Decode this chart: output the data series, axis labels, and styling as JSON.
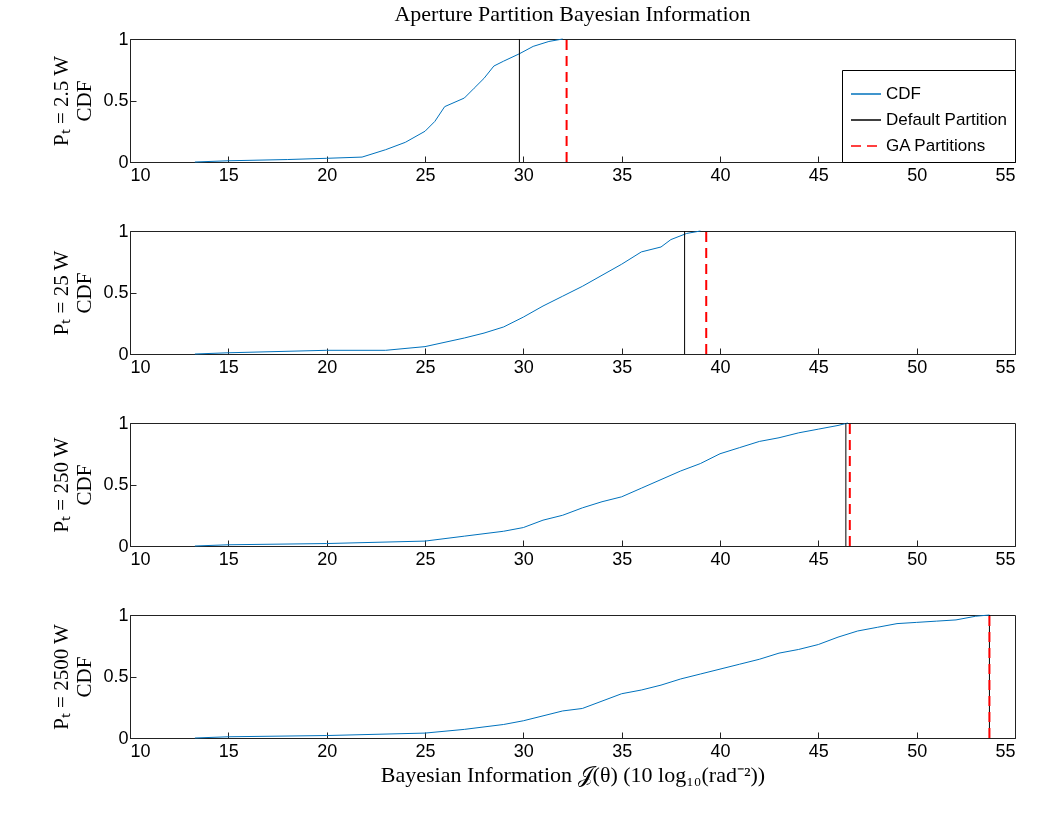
{
  "chart_data": [
    {
      "type": "line",
      "title": "Aperture Partition Bayesian Information",
      "ylabel": "Pₜ = 2.5 W\nCDF",
      "xlim": [
        10,
        55
      ],
      "xticks": [
        10,
        15,
        20,
        25,
        30,
        35,
        40,
        45,
        50,
        55
      ],
      "ylim": [
        0,
        1
      ],
      "yticks": [
        0,
        0.5,
        1
      ],
      "grid": false,
      "legend": "bottom right",
      "series": [
        {
          "name": "CDF",
          "color": "#0072bd",
          "x": [
            13.3,
            15,
            18,
            20,
            21.8,
            23,
            24,
            25,
            25.5,
            26,
            27,
            27.5,
            28,
            28.5,
            29,
            29.8,
            30.5,
            31.3,
            32
          ],
          "values": [
            0,
            0.01,
            0.02,
            0.03,
            0.04,
            0.1,
            0.16,
            0.25,
            0.33,
            0.45,
            0.52,
            0.6,
            0.68,
            0.78,
            0.82,
            0.88,
            0.94,
            0.98,
            1
          ]
        },
        {
          "name": "Default Partition",
          "color": "#000000",
          "x": [
            29.8,
            29.8
          ],
          "values": [
            0,
            1
          ]
        },
        {
          "name": "GA Partitions",
          "color": "#ff0000",
          "line_style": "dashed",
          "x": [
            32.2,
            32.2
          ],
          "values": [
            0,
            1
          ]
        }
      ]
    },
    {
      "type": "line",
      "ylabel": "Pₜ = 25 W\nCDF",
      "xlim": [
        10,
        55
      ],
      "xticks": [
        10,
        15,
        20,
        25,
        30,
        35,
        40,
        45,
        50,
        55
      ],
      "ylim": [
        0,
        1
      ],
      "yticks": [
        0,
        0.5,
        1
      ],
      "grid": false,
      "series": [
        {
          "color": "#0072bd",
          "x": [
            13.3,
            15,
            20,
            23,
            25,
            27,
            28,
            29,
            30,
            31,
            32,
            33,
            34,
            35,
            36,
            37,
            37.5,
            38.3,
            39
          ],
          "values": [
            0,
            0.01,
            0.03,
            0.03,
            0.06,
            0.13,
            0.17,
            0.22,
            0.3,
            0.39,
            0.47,
            0.55,
            0.64,
            0.73,
            0.83,
            0.87,
            0.93,
            0.98,
            1
          ]
        },
        {
          "color": "#000000",
          "x": [
            38.2,
            38.2
          ],
          "values": [
            0,
            1
          ]
        },
        {
          "color": "#ff0000",
          "line_style": "dashed",
          "x": [
            39.3,
            39.3
          ],
          "values": [
            0,
            1
          ]
        }
      ]
    },
    {
      "type": "line",
      "ylabel": "Pₜ = 250 W\nCDF",
      "xlim": [
        10,
        55
      ],
      "xticks": [
        10,
        15,
        20,
        25,
        30,
        35,
        40,
        45,
        50,
        55
      ],
      "ylim": [
        0,
        1
      ],
      "yticks": [
        0,
        0.5,
        1
      ],
      "grid": false,
      "series": [
        {
          "color": "#0072bd",
          "x": [
            13.3,
            15,
            20,
            25,
            27,
            29,
            30,
            31,
            32,
            33,
            34,
            35,
            36,
            37,
            38,
            39,
            40,
            41,
            42,
            43,
            44,
            45,
            46,
            46.5
          ],
          "values": [
            0,
            0.01,
            0.02,
            0.04,
            0.08,
            0.12,
            0.15,
            0.21,
            0.25,
            0.31,
            0.36,
            0.4,
            0.47,
            0.54,
            0.61,
            0.67,
            0.75,
            0.8,
            0.85,
            0.88,
            0.92,
            0.95,
            0.98,
            1
          ]
        },
        {
          "color": "#000000",
          "x": [
            46.4,
            46.4
          ],
          "values": [
            0,
            1
          ]
        },
        {
          "color": "#ff0000",
          "line_style": "dashed",
          "x": [
            46.6,
            46.6
          ],
          "values": [
            0,
            1
          ]
        }
      ]
    },
    {
      "type": "line",
      "ylabel": "Pₜ = 2500 W\nCDF",
      "xlabel": "Bayesian Information 𝒥(θ)  (10 log₁₀(rad⁻²))",
      "xlim": [
        10,
        55
      ],
      "xticks": [
        10,
        15,
        20,
        25,
        30,
        35,
        40,
        45,
        50,
        55
      ],
      "ylim": [
        0,
        1
      ],
      "yticks": [
        0,
        0.5,
        1
      ],
      "grid": false,
      "series": [
        {
          "color": "#0072bd",
          "x": [
            13.3,
            15,
            20,
            25,
            27,
            29,
            30,
            31,
            32,
            33,
            34,
            35,
            36,
            37,
            38,
            39,
            40,
            41,
            42,
            43,
            44,
            45,
            46,
            47,
            48,
            49,
            50,
            51,
            52,
            53,
            53.7
          ],
          "values": [
            0,
            0.01,
            0.02,
            0.04,
            0.07,
            0.11,
            0.14,
            0.18,
            0.22,
            0.24,
            0.3,
            0.36,
            0.39,
            0.43,
            0.48,
            0.52,
            0.56,
            0.6,
            0.64,
            0.69,
            0.72,
            0.76,
            0.82,
            0.87,
            0.9,
            0.93,
            0.94,
            0.95,
            0.96,
            0.99,
            1
          ]
        },
        {
          "color": "#000000",
          "x": [
            53.7,
            53.7
          ],
          "values": [
            0,
            1
          ]
        },
        {
          "color": "#ff0000",
          "line_style": "dashed",
          "x": [
            53.7,
            53.7
          ],
          "values": [
            0,
            1
          ]
        }
      ]
    }
  ]
}
